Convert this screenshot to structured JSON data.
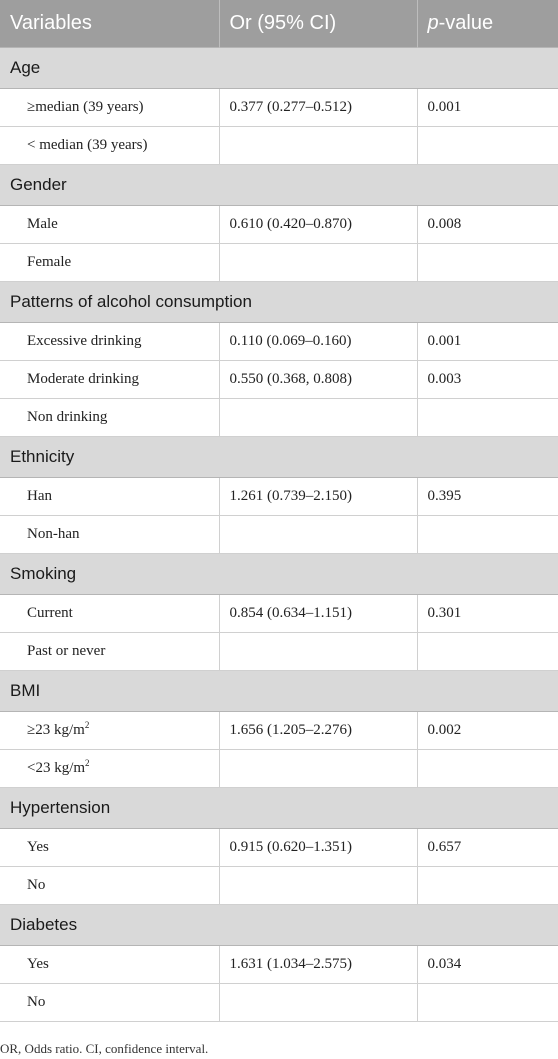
{
  "header": {
    "col1": "Variables",
    "col2": "Or (95% CI)",
    "col3_italic": "p",
    "col3_rest": "-value"
  },
  "groups": [
    {
      "title": "Age",
      "rows": [
        {
          "label": "≥median (39 years)",
          "or": "0.377 (0.277–0.512)",
          "p": "0.001"
        },
        {
          "label": "< median (39 years)",
          "or": "",
          "p": ""
        }
      ]
    },
    {
      "title": "Gender",
      "rows": [
        {
          "label": "Male",
          "or": "0.610 (0.420–0.870)",
          "p": "0.008"
        },
        {
          "label": "Female",
          "or": "",
          "p": ""
        }
      ]
    },
    {
      "title": "Patterns of alcohol consumption",
      "rows": [
        {
          "label": "Excessive drinking",
          "or": "0.110 (0.069–0.160)",
          "p": "0.001"
        },
        {
          "label": "Moderate drinking",
          "or": "0.550 (0.368, 0.808)",
          "p": "0.003"
        },
        {
          "label": "Non drinking",
          "or": "",
          "p": ""
        }
      ]
    },
    {
      "title": "Ethnicity",
      "rows": [
        {
          "label": "Han",
          "or": "1.261 (0.739–2.150)",
          "p": "0.395"
        },
        {
          "label": "Non-han",
          "or": "",
          "p": ""
        }
      ]
    },
    {
      "title": "Smoking",
      "rows": [
        {
          "label": "Current",
          "or": "0.854 (0.634–1.151)",
          "p": "0.301"
        },
        {
          "label": "Past or never",
          "or": "",
          "p": ""
        }
      ]
    },
    {
      "title": "BMI",
      "rows": [
        {
          "label": "≥23 kg/m",
          "sup": "2",
          "or": "1.656 (1.205–2.276)",
          "p": "0.002"
        },
        {
          "label": "<23 kg/m",
          "sup": "2",
          "or": "",
          "p": ""
        }
      ]
    },
    {
      "title": "Hypertension",
      "rows": [
        {
          "label": "Yes",
          "or": "0.915 (0.620–1.351)",
          "p": "0.657"
        },
        {
          "label": "No",
          "or": "",
          "p": ""
        }
      ]
    },
    {
      "title": "Diabetes",
      "rows": [
        {
          "label": "Yes",
          "or": "1.631 (1.034–2.575)",
          "p": "0.034"
        },
        {
          "label": "No",
          "or": "",
          "p": ""
        }
      ]
    }
  ],
  "footnote": "OR, Odds ratio. CI, confidence interval."
}
